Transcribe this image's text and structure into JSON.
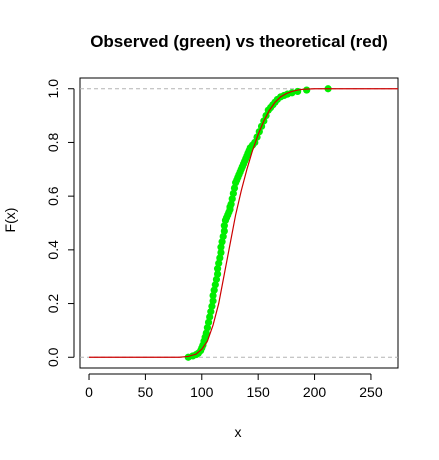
{
  "chart_data": {
    "type": "line",
    "title": "Observed (green) vs theoretical (red)",
    "xlabel": "x",
    "ylabel": "F(x)",
    "xlim": [
      -8,
      274
    ],
    "ylim": [
      -0.04,
      1.04
    ],
    "x_ticks": [
      0,
      50,
      100,
      150,
      200,
      250
    ],
    "y_ticks": [
      0.0,
      0.2,
      0.4,
      0.6,
      0.8,
      1.0
    ],
    "y_tick_labels": [
      "0.0",
      "0.2",
      "0.4",
      "0.6",
      "0.8",
      "1.0"
    ],
    "reference_lines": [
      0,
      1
    ],
    "grid": false,
    "colors": {
      "observed": "#00ee00",
      "theoretical": "#cc0000",
      "reference": "#b3b3b3",
      "frame": "#000000"
    },
    "series": [
      {
        "color": "#cc0000",
        "kind": "line",
        "x": [
          0,
          80,
          88,
          95,
          100,
          105,
          110,
          115,
          120,
          125,
          130,
          135,
          140,
          145,
          150,
          155,
          160,
          165,
          170,
          175,
          180,
          185,
          190,
          195,
          200,
          210,
          220,
          240,
          274
        ],
        "y": [
          0,
          0,
          0.003,
          0.012,
          0.03,
          0.06,
          0.12,
          0.2,
          0.31,
          0.42,
          0.53,
          0.62,
          0.7,
          0.77,
          0.83,
          0.88,
          0.92,
          0.95,
          0.97,
          0.982,
          0.99,
          0.995,
          0.998,
          0.999,
          1,
          1,
          1,
          1,
          1
        ]
      },
      {
        "color": "#00ee00",
        "kind": "points",
        "x": [
          88,
          92,
          95,
          97,
          99,
          100,
          101,
          102,
          103,
          104,
          105,
          106,
          107,
          108,
          109,
          110,
          110,
          111,
          112,
          113,
          114,
          114,
          115,
          116,
          117,
          117,
          118,
          119,
          120,
          120,
          121,
          122,
          123,
          124,
          125,
          125,
          126,
          127,
          128,
          129,
          130,
          131,
          132,
          133,
          134,
          135,
          136,
          137,
          138,
          139,
          140,
          141,
          142,
          143,
          145,
          147,
          149,
          151,
          153,
          155,
          157,
          159,
          161,
          163,
          165,
          167,
          170,
          173,
          176,
          180,
          185,
          193,
          212
        ],
        "y": [
          0.0,
          0.005,
          0.01,
          0.015,
          0.025,
          0.035,
          0.045,
          0.06,
          0.075,
          0.09,
          0.11,
          0.13,
          0.15,
          0.17,
          0.19,
          0.21,
          0.23,
          0.25,
          0.27,
          0.29,
          0.31,
          0.33,
          0.35,
          0.37,
          0.39,
          0.41,
          0.43,
          0.45,
          0.47,
          0.49,
          0.51,
          0.52,
          0.53,
          0.54,
          0.55,
          0.56,
          0.57,
          0.59,
          0.61,
          0.63,
          0.65,
          0.66,
          0.67,
          0.68,
          0.69,
          0.7,
          0.71,
          0.72,
          0.73,
          0.74,
          0.75,
          0.76,
          0.77,
          0.78,
          0.79,
          0.8,
          0.82,
          0.84,
          0.86,
          0.88,
          0.9,
          0.92,
          0.93,
          0.94,
          0.95,
          0.96,
          0.97,
          0.975,
          0.98,
          0.985,
          0.99,
          0.995,
          1.0
        ]
      }
    ]
  }
}
